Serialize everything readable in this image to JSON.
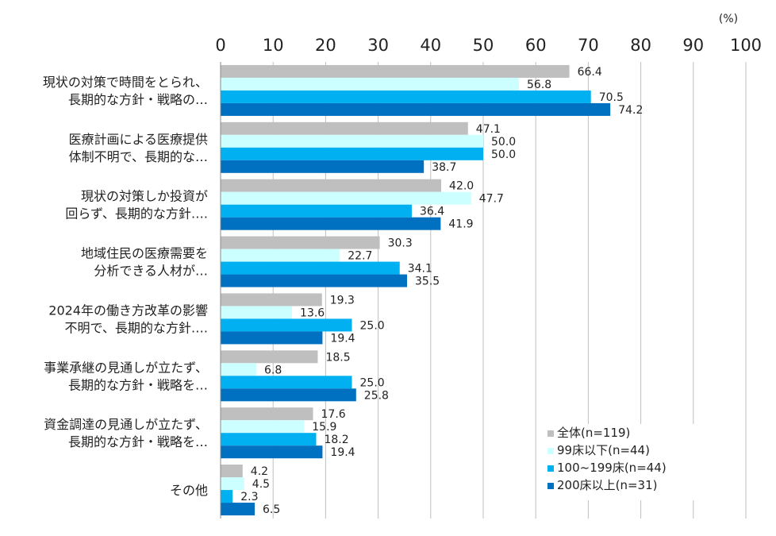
{
  "chart_data": {
    "type": "bar",
    "orientation": "horizontal",
    "unit_label": "(%)",
    "xlim": [
      0,
      100
    ],
    "x_ticks": [
      "0",
      "10",
      "20",
      "30",
      "40",
      "50",
      "60",
      "70",
      "80",
      "90",
      "100"
    ],
    "categories": [
      [
        "現状の対策で時間をとられ、",
        "長期的な方針・戦略の…"
      ],
      [
        "医療計画による医療提供",
        "体制不明で、長期的な…"
      ],
      [
        "現状の対策しか投資が",
        "回らず、長期的な方針…."
      ],
      [
        "地域住民の医療需要を",
        "分析できる人材が…"
      ],
      [
        "2024年の働き方改革の影響",
        "不明で、長期的な方針…."
      ],
      [
        "事業承継の見通しが立たず、",
        "長期的な方針・戦略を…"
      ],
      [
        "資金調達の見通しが立たず、",
        "長期的な方針・戦略を…"
      ],
      [
        "その他"
      ]
    ],
    "series": [
      {
        "name": "全体(n=119)",
        "color": "#bfbfbf",
        "values": [
          66.4,
          47.1,
          42.0,
          30.3,
          19.3,
          18.5,
          17.6,
          4.2
        ],
        "labels": [
          "66.4",
          "47.1",
          "42.0",
          "30.3",
          "19.3",
          "18.5",
          "17.6",
          "4.2"
        ]
      },
      {
        "name": "99床以下(n=44)",
        "color": "#ccffff",
        "values": [
          56.8,
          50.0,
          47.7,
          22.7,
          13.6,
          6.8,
          15.9,
          4.5
        ],
        "labels": [
          "56.8",
          "50.0",
          "47.7",
          "22.7",
          "13.6",
          "6.8",
          "15.9",
          "4.5"
        ]
      },
      {
        "name": "100~199床(n=44)",
        "color": "#00b0f0",
        "values": [
          70.5,
          50.0,
          36.4,
          34.1,
          25.0,
          25.0,
          18.2,
          2.3
        ],
        "labels": [
          "70.5",
          "50.0",
          "36.4",
          "34.1",
          "25.0",
          "25.0",
          "18.2",
          "2.3"
        ]
      },
      {
        "name": "200床以上(n=31)",
        "color": "#0070c0",
        "values": [
          74.2,
          38.7,
          41.9,
          35.5,
          19.4,
          25.8,
          19.4,
          6.5
        ],
        "labels": [
          "74.2",
          "38.7",
          "41.9",
          "35.5",
          "19.4",
          "25.8",
          "19.4",
          "6.5"
        ]
      }
    ],
    "legend_position": "bottom-right",
    "grid": true
  }
}
